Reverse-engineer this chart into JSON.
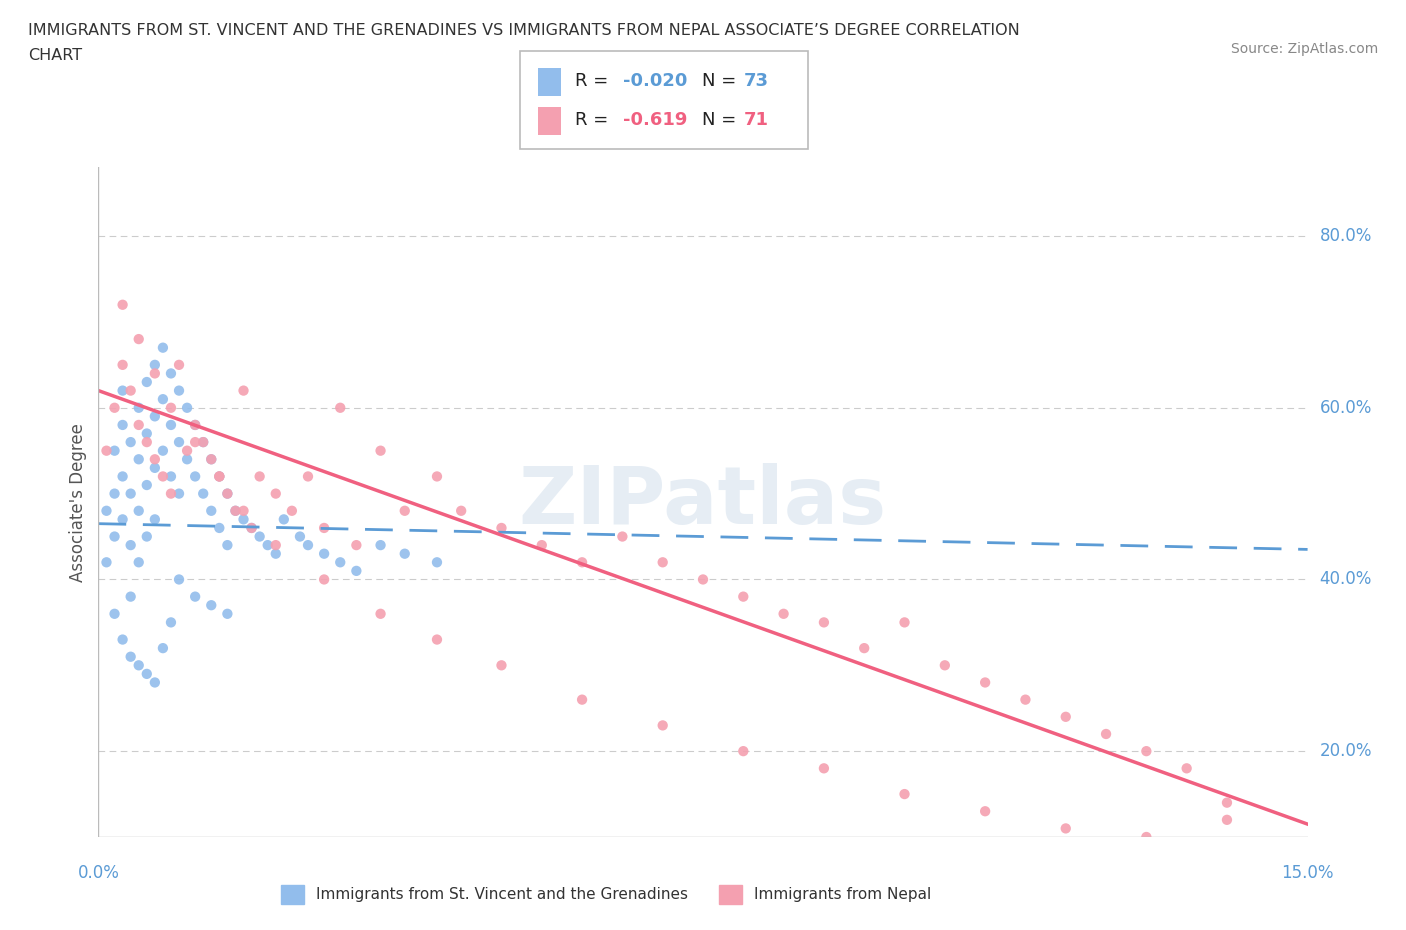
{
  "title_line1": "IMMIGRANTS FROM ST. VINCENT AND THE GRENADINES VS IMMIGRANTS FROM NEPAL ASSOCIATE’S DEGREE CORRELATION",
  "title_line2": "CHART",
  "source": "Source: ZipAtlas.com",
  "ylabel": "Associate's Degree",
  "y_ticks": [
    0.2,
    0.4,
    0.6,
    0.8
  ],
  "y_tick_labels": [
    "20.0%",
    "40.0%",
    "60.0%",
    "80.0%"
  ],
  "xmin": 0.0,
  "xmax": 0.15,
  "ymin": 0.1,
  "ymax": 0.88,
  "blue_color": "#92BDEC",
  "pink_color": "#F4A0B0",
  "blue_line_color": "#5B9BD5",
  "pink_line_color": "#F06080",
  "watermark": "ZIPatlas",
  "blue_scatter_x": [
    0.001,
    0.001,
    0.002,
    0.002,
    0.002,
    0.003,
    0.003,
    0.003,
    0.003,
    0.004,
    0.004,
    0.004,
    0.004,
    0.005,
    0.005,
    0.005,
    0.005,
    0.006,
    0.006,
    0.006,
    0.006,
    0.007,
    0.007,
    0.007,
    0.007,
    0.008,
    0.008,
    0.008,
    0.009,
    0.009,
    0.009,
    0.01,
    0.01,
    0.01,
    0.011,
    0.011,
    0.012,
    0.012,
    0.013,
    0.013,
    0.014,
    0.014,
    0.015,
    0.015,
    0.016,
    0.016,
    0.017,
    0.018,
    0.019,
    0.02,
    0.021,
    0.022,
    0.023,
    0.025,
    0.026,
    0.028,
    0.03,
    0.032,
    0.035,
    0.038,
    0.042,
    0.002,
    0.003,
    0.004,
    0.005,
    0.006,
    0.007,
    0.008,
    0.009,
    0.01,
    0.012,
    0.014,
    0.016
  ],
  "blue_scatter_y": [
    0.48,
    0.42,
    0.55,
    0.5,
    0.45,
    0.58,
    0.52,
    0.47,
    0.62,
    0.56,
    0.5,
    0.44,
    0.38,
    0.6,
    0.54,
    0.48,
    0.42,
    0.63,
    0.57,
    0.51,
    0.45,
    0.65,
    0.59,
    0.53,
    0.47,
    0.67,
    0.61,
    0.55,
    0.64,
    0.58,
    0.52,
    0.62,
    0.56,
    0.5,
    0.6,
    0.54,
    0.58,
    0.52,
    0.56,
    0.5,
    0.54,
    0.48,
    0.52,
    0.46,
    0.5,
    0.44,
    0.48,
    0.47,
    0.46,
    0.45,
    0.44,
    0.43,
    0.47,
    0.45,
    0.44,
    0.43,
    0.42,
    0.41,
    0.44,
    0.43,
    0.42,
    0.36,
    0.33,
    0.31,
    0.3,
    0.29,
    0.28,
    0.32,
    0.35,
    0.4,
    0.38,
    0.37,
    0.36
  ],
  "pink_scatter_x": [
    0.001,
    0.002,
    0.003,
    0.004,
    0.005,
    0.006,
    0.007,
    0.008,
    0.009,
    0.01,
    0.011,
    0.012,
    0.013,
    0.014,
    0.015,
    0.016,
    0.017,
    0.018,
    0.019,
    0.02,
    0.022,
    0.024,
    0.026,
    0.028,
    0.03,
    0.032,
    0.035,
    0.038,
    0.042,
    0.045,
    0.05,
    0.055,
    0.06,
    0.065,
    0.07,
    0.075,
    0.08,
    0.085,
    0.09,
    0.095,
    0.1,
    0.105,
    0.11,
    0.115,
    0.12,
    0.125,
    0.13,
    0.135,
    0.14,
    0.003,
    0.005,
    0.007,
    0.009,
    0.012,
    0.015,
    0.018,
    0.022,
    0.028,
    0.035,
    0.042,
    0.05,
    0.06,
    0.07,
    0.08,
    0.09,
    0.1,
    0.11,
    0.12,
    0.13,
    0.14
  ],
  "pink_scatter_y": [
    0.55,
    0.6,
    0.65,
    0.62,
    0.58,
    0.56,
    0.54,
    0.52,
    0.5,
    0.65,
    0.55,
    0.58,
    0.56,
    0.54,
    0.52,
    0.5,
    0.48,
    0.62,
    0.46,
    0.52,
    0.5,
    0.48,
    0.52,
    0.46,
    0.6,
    0.44,
    0.55,
    0.48,
    0.52,
    0.48,
    0.46,
    0.44,
    0.42,
    0.45,
    0.42,
    0.4,
    0.38,
    0.36,
    0.35,
    0.32,
    0.35,
    0.3,
    0.28,
    0.26,
    0.24,
    0.22,
    0.2,
    0.18,
    0.14,
    0.72,
    0.68,
    0.64,
    0.6,
    0.56,
    0.52,
    0.48,
    0.44,
    0.4,
    0.36,
    0.33,
    0.3,
    0.26,
    0.23,
    0.2,
    0.18,
    0.15,
    0.13,
    0.11,
    0.1,
    0.12
  ],
  "blue_line_x": [
    0.0,
    0.15
  ],
  "blue_line_y": [
    0.465,
    0.435
  ],
  "pink_line_x": [
    0.0,
    0.15
  ],
  "pink_line_y": [
    0.62,
    0.115
  ]
}
